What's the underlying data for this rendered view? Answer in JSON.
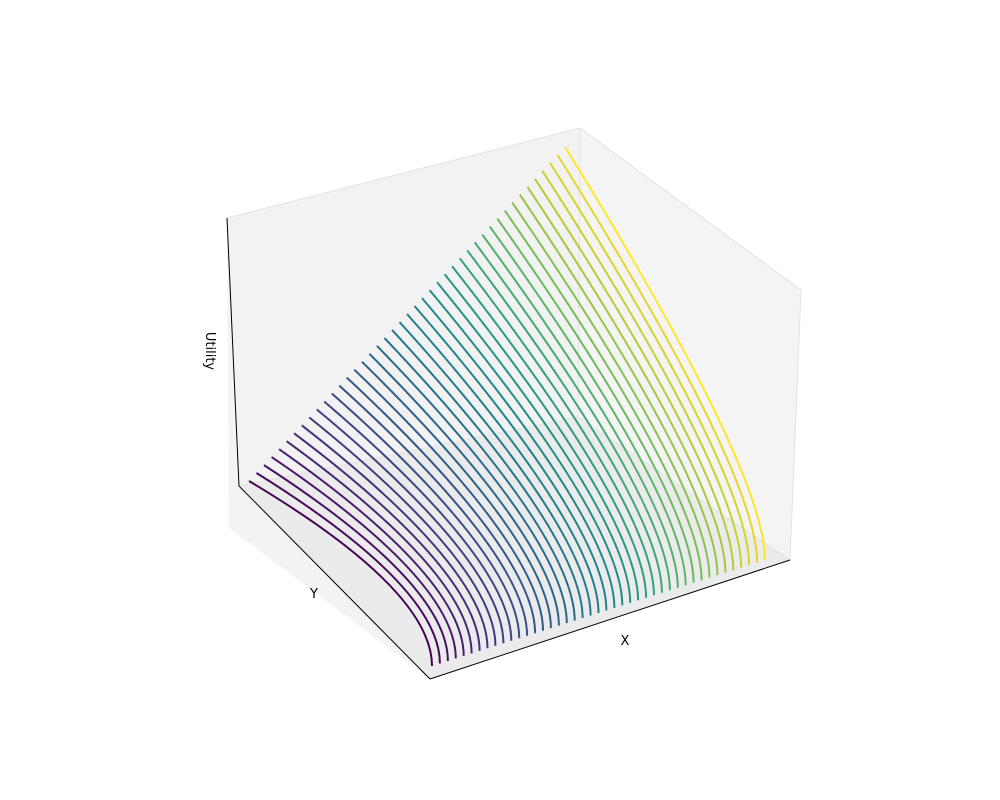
{
  "chart_data": {
    "type": "line",
    "projection": "3d",
    "xlabel": "X",
    "ylabel": "Y",
    "zlabel": "Utility",
    "grid": false,
    "ticks_visible": false,
    "legend": "none",
    "colormap": "viridis",
    "colors": [
      "#440154",
      "#46085c",
      "#471063",
      "#481769",
      "#471e6f",
      "#472574",
      "#452c78",
      "#43327c",
      "#41397f",
      "#3e3f82",
      "#3b4586",
      "#384b87",
      "#355089",
      "#32568b",
      "#2f5b8b",
      "#2c618c",
      "#2a658d",
      "#276a8e",
      "#25708e",
      "#23758e",
      "#217a8e",
      "#1f7f8d",
      "#1e848c",
      "#1e888a",
      "#1f8e88",
      "#219386",
      "#259883",
      "#2a9c81",
      "#31a17d",
      "#3aa677",
      "#45ab72",
      "#50b06b",
      "#5cb466",
      "#6ab85f",
      "#77bd57",
      "#86c14f",
      "#95c546",
      "#a5c93e",
      "#b5cd35",
      "#c5d12d",
      "#d5d428",
      "#e4d726",
      "#fde725"
    ]
  },
  "axes": {
    "pane_color": "#f2f2f2",
    "line_color": "#000000"
  }
}
